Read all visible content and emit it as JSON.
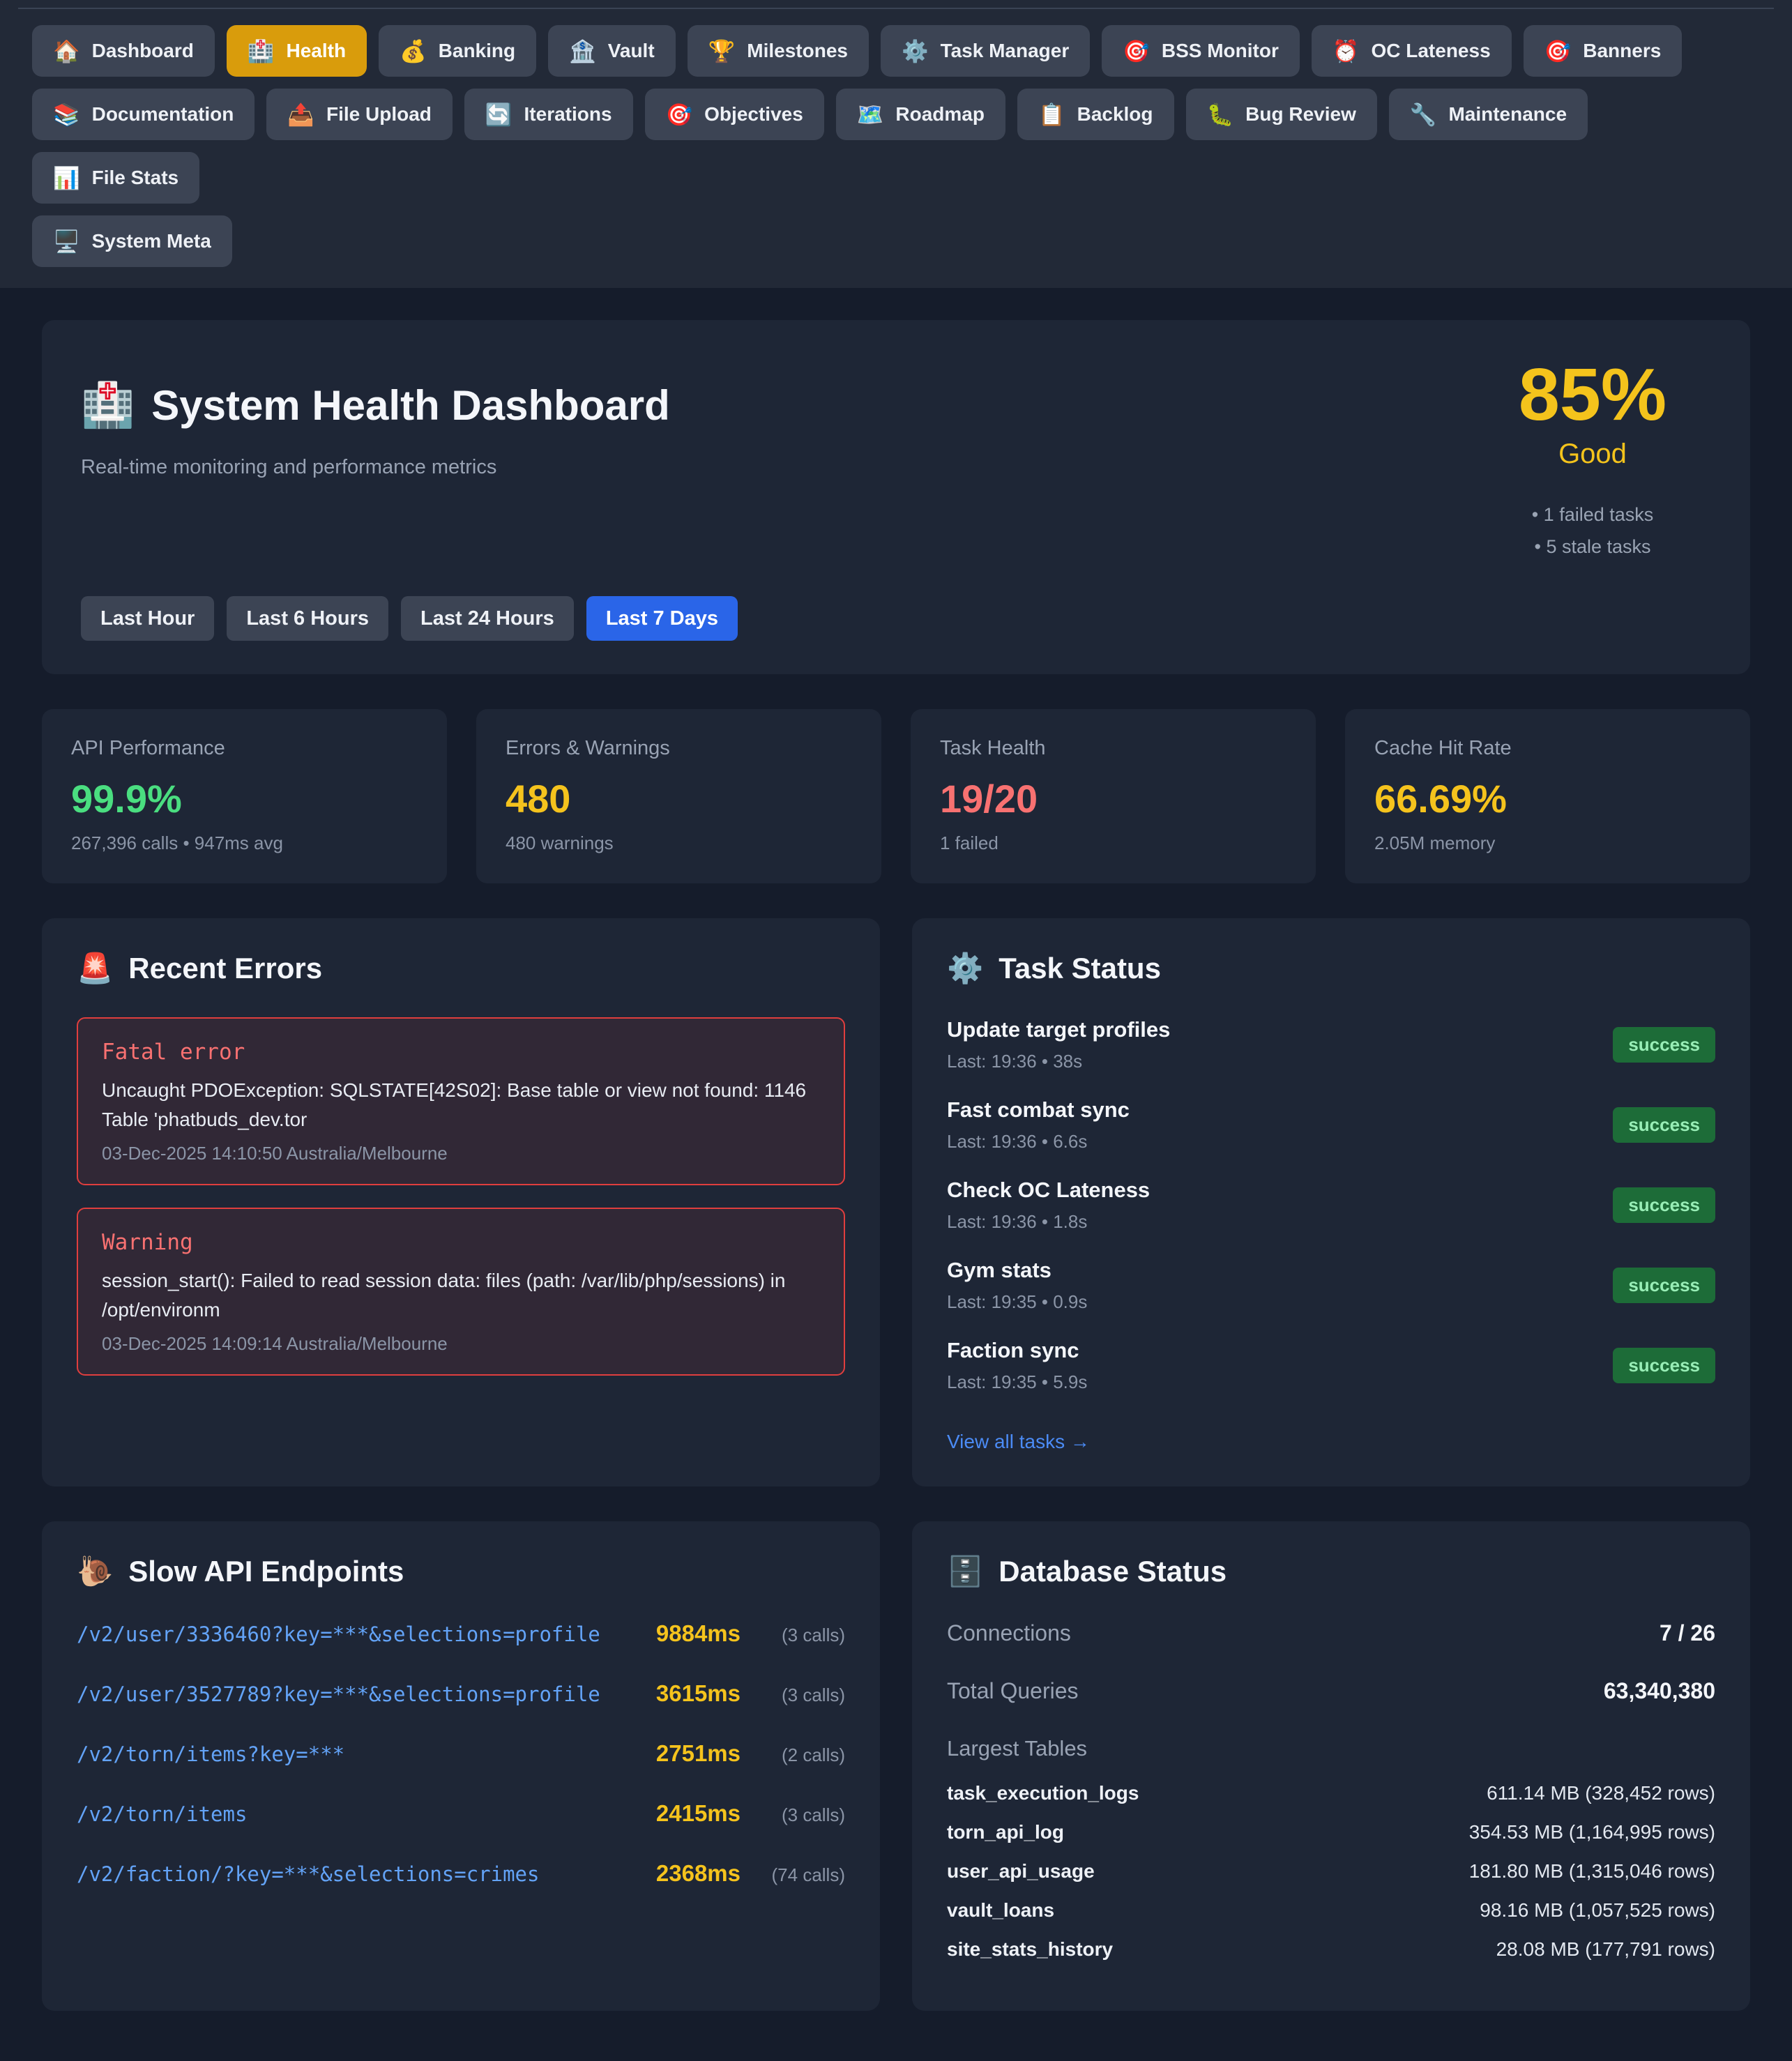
{
  "theme": {
    "accent_active_tab": "#d99c0c",
    "accent_active_time": "#2a65e8",
    "score_yellow": "#f4c31c",
    "success_green_bg": "#1d6c38",
    "success_green_text": "#98eeb6",
    "error_red": "#e03e3e",
    "link_blue": "#4b8bf5",
    "endpoint_blue": "#63a3f7"
  },
  "nav": {
    "row1": [
      {
        "label": "Dashboard",
        "icon": "🏠"
      },
      {
        "label": "Health",
        "icon": "🏥",
        "active": true
      },
      {
        "label": "Banking",
        "icon": "💰"
      },
      {
        "label": "Vault",
        "icon": "🏦"
      },
      {
        "label": "Milestones",
        "icon": "🏆"
      },
      {
        "label": "Task Manager",
        "icon": "⚙️"
      },
      {
        "label": "BSS Monitor",
        "icon": "🎯"
      },
      {
        "label": "OC Lateness",
        "icon": "⏰"
      },
      {
        "label": "Banners",
        "icon": "🎯"
      }
    ],
    "row2": [
      {
        "label": "Documentation",
        "icon": "📚"
      },
      {
        "label": "File Upload",
        "icon": "📤"
      },
      {
        "label": "Iterations",
        "icon": "🔄"
      },
      {
        "label": "Objectives",
        "icon": "🎯"
      },
      {
        "label": "Roadmap",
        "icon": "🗺️"
      },
      {
        "label": "Backlog",
        "icon": "📋"
      },
      {
        "label": "Bug Review",
        "icon": "🐛"
      },
      {
        "label": "Maintenance",
        "icon": "🔧"
      },
      {
        "label": "File Stats",
        "icon": "📊"
      }
    ],
    "row3": [
      {
        "label": "System Meta",
        "icon": "🖥️"
      }
    ]
  },
  "header": {
    "icon": "🏥",
    "title": "System Health Dashboard",
    "subtitle": "Real-time monitoring and performance metrics",
    "score": "85%",
    "score_label": "Good",
    "notes": [
      "• 1 failed tasks",
      "• 5 stale tasks"
    ],
    "time_ranges": [
      {
        "label": "Last Hour"
      },
      {
        "label": "Last 6 Hours"
      },
      {
        "label": "Last 24 Hours"
      },
      {
        "label": "Last 7 Days",
        "active": true
      }
    ]
  },
  "metrics": [
    {
      "label": "API Performance",
      "value": "99.9%",
      "sub": "267,396 calls • 947ms avg",
      "color": "#4ade80"
    },
    {
      "label": "Errors & Warnings",
      "value": "480",
      "sub": "480 warnings",
      "color": "#f5c31d"
    },
    {
      "label": "Task Health",
      "value": "19/20",
      "sub": "1 failed",
      "color": "#f87171"
    },
    {
      "label": "Cache Hit Rate",
      "value": "66.69%",
      "sub": "2.05M memory",
      "color": "#f5c31d"
    }
  ],
  "recent_errors": {
    "icon": "🚨",
    "title": "Recent Errors",
    "items": [
      {
        "level": "Fatal error",
        "message": "Uncaught PDOException: SQLSTATE[42S02]: Base table or view not found: 1146 Table 'phatbuds_dev.tor",
        "timestamp": "03-Dec-2025 14:10:50 Australia/Melbourne"
      },
      {
        "level": "Warning",
        "message": "session_start(): Failed to read session data: files (path: /var/lib/php/sessions) in /opt/environm",
        "timestamp": "03-Dec-2025 14:09:14 Australia/Melbourne"
      }
    ]
  },
  "task_status": {
    "icon": "⚙️",
    "title": "Task Status",
    "view_all": "View all tasks →",
    "items": [
      {
        "name": "Update target profiles",
        "last": "Last: 19:36 • 38s",
        "status": "success"
      },
      {
        "name": "Fast combat sync",
        "last": "Last: 19:36 • 6.6s",
        "status": "success"
      },
      {
        "name": "Check OC Lateness",
        "last": "Last: 19:36 • 1.8s",
        "status": "success"
      },
      {
        "name": "Gym stats",
        "last": "Last: 19:35 • 0.9s",
        "status": "success"
      },
      {
        "name": "Faction sync",
        "last": "Last: 19:35 • 5.9s",
        "status": "success"
      }
    ]
  },
  "slow_endpoints": {
    "icon": "🐌",
    "title": "Slow API Endpoints",
    "items": [
      {
        "path": "/v2/user/3336460?key=***&selections=profile",
        "ms": "9884ms",
        "calls": "(3 calls)"
      },
      {
        "path": "/v2/user/3527789?key=***&selections=profile",
        "ms": "3615ms",
        "calls": "(3 calls)"
      },
      {
        "path": "/v2/torn/items?key=***",
        "ms": "2751ms",
        "calls": "(2 calls)"
      },
      {
        "path": "/v2/torn/items",
        "ms": "2415ms",
        "calls": "(3 calls)"
      },
      {
        "path": "/v2/faction/?key=***&selections=crimes",
        "ms": "2368ms",
        "calls": "(74 calls)"
      }
    ]
  },
  "database": {
    "icon": "🗄️",
    "title": "Database Status",
    "connections_label": "Connections",
    "connections_value": "7 / 26",
    "queries_label": "Total Queries",
    "queries_value": "63,340,380",
    "tables_label": "Largest Tables",
    "tables": [
      {
        "name": "task_execution_logs",
        "size": "611.14 MB (328,452 rows)"
      },
      {
        "name": "torn_api_log",
        "size": "354.53 MB (1,164,995 rows)"
      },
      {
        "name": "user_api_usage",
        "size": "181.80 MB (1,315,046 rows)"
      },
      {
        "name": "vault_loans",
        "size": "98.16 MB (1,057,525 rows)"
      },
      {
        "name": "site_stats_history",
        "size": "28.08 MB (177,791 rows)"
      }
    ]
  }
}
